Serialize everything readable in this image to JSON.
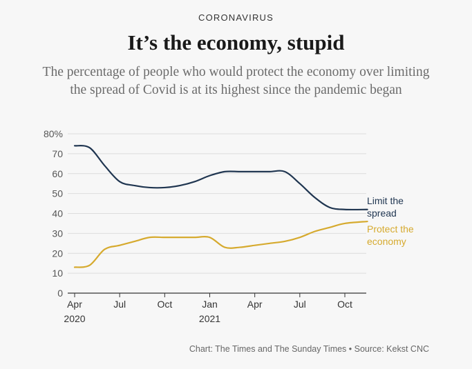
{
  "header": {
    "kicker": "CORONAVIRUS",
    "title": "It’s the economy, stupid",
    "subtitle": "The percentage of people who would protect the economy over limiting the spread of Covid is at its highest since the pandemic began"
  },
  "footer": {
    "source": "Chart: The Times and The Sunday Times • Source: Kekst CNC"
  },
  "chart_data": {
    "type": "line",
    "title": "It’s the economy, stupid",
    "x_unit": "months since Apr 2020",
    "xlim": [
      0,
      19.5
    ],
    "ylim": [
      0,
      80
    ],
    "yticks": [
      0,
      10,
      20,
      30,
      40,
      50,
      60,
      70,
      80
    ],
    "ytick_labels": [
      "0",
      "10",
      "20",
      "30",
      "40",
      "50",
      "60",
      "70",
      "80%"
    ],
    "xticks": [
      {
        "x": 0,
        "label": "Apr",
        "sub": "2020"
      },
      {
        "x": 3,
        "label": "Jul",
        "sub": ""
      },
      {
        "x": 6,
        "label": "Oct",
        "sub": ""
      },
      {
        "x": 9,
        "label": "Jan",
        "sub": "2021"
      },
      {
        "x": 12,
        "label": "Apr",
        "sub": ""
      },
      {
        "x": 15,
        "label": "Jul",
        "sub": ""
      },
      {
        "x": 18,
        "label": "Oct",
        "sub": ""
      }
    ],
    "grid": true,
    "series": [
      {
        "name": "Limit the spread",
        "label_lines": [
          "Limit the",
          "spread"
        ],
        "color": "#1f3550",
        "x": [
          0,
          1,
          2,
          3,
          4,
          5,
          6,
          7,
          8,
          9,
          10,
          11,
          12,
          13,
          14,
          15,
          16,
          17,
          18,
          19.5
        ],
        "values": [
          74,
          73,
          64,
          56,
          54,
          53,
          53,
          54,
          56,
          59,
          61,
          61,
          61,
          61,
          61,
          55,
          48,
          43,
          42,
          42
        ]
      },
      {
        "name": "Protect the economy",
        "label_lines": [
          "Protect the",
          "economy"
        ],
        "color": "#d6aa2e",
        "x": [
          0,
          1,
          2,
          3,
          4,
          5,
          6,
          7,
          8,
          9,
          10,
          11,
          12,
          13,
          14,
          15,
          16,
          17,
          18,
          19.5
        ],
        "values": [
          13,
          14,
          22,
          24,
          26,
          28,
          28,
          28,
          28,
          28,
          23,
          23,
          24,
          25,
          26,
          28,
          31,
          33,
          35,
          36
        ]
      }
    ]
  }
}
